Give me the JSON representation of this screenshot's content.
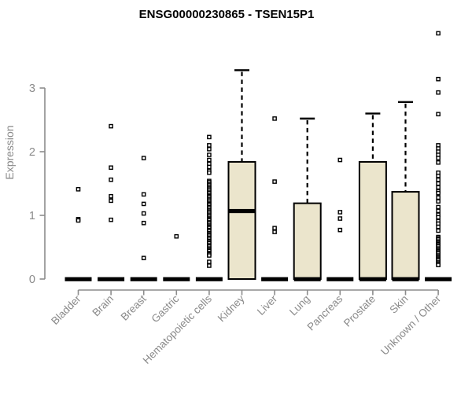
{
  "chart_data": {
    "type": "boxplot",
    "title": "ENSG00000230865 - TSEN15P1",
    "xlabel": "",
    "ylabel": "Expression",
    "ylim": [
      0,
      3.9
    ],
    "yticks": [
      0,
      1,
      2,
      3
    ],
    "grid": false,
    "legend": "none",
    "box_fill_color": "#ebe5cc",
    "box_stroke_color": "#000000",
    "axis_color": "#8c8c8c",
    "tick_label_color": "#8a8a8a",
    "outlier_marker": "open-square",
    "categories": [
      "Bladder",
      "Brain",
      "Breast",
      "Gastric",
      "Hematopoietic cells",
      "Kidney",
      "Liver",
      "Lung",
      "Pancreas",
      "Prostate",
      "Skin",
      "Unknown / Other"
    ],
    "groups": [
      {
        "label": "Bladder",
        "box": {
          "q1": 0,
          "median": 0,
          "q3": 0
        },
        "whisker_low": 0,
        "whisker_high": 0,
        "outliers": [
          1.41,
          0.94,
          0.92
        ]
      },
      {
        "label": "Brain",
        "box": {
          "q1": 0,
          "median": 0,
          "q3": 0
        },
        "whisker_low": 0,
        "whisker_high": 0,
        "outliers": [
          2.4,
          1.75,
          1.56,
          1.3,
          1.23,
          0.93
        ]
      },
      {
        "label": "Breast",
        "box": {
          "q1": 0,
          "median": 0,
          "q3": 0
        },
        "whisker_low": 0,
        "whisker_high": 0,
        "outliers": [
          1.9,
          1.33,
          1.18,
          1.03,
          0.88,
          0.33
        ]
      },
      {
        "label": "Gastric",
        "box": {
          "q1": 0,
          "median": 0,
          "q3": 0
        },
        "whisker_low": 0,
        "whisker_high": 0,
        "outliers": [
          0.67
        ]
      },
      {
        "label": "Hematopoietic cells",
        "box": {
          "q1": 0,
          "median": 0,
          "q3": 0
        },
        "whisker_low": 0,
        "whisker_high": 0,
        "outliers": [
          2.23,
          2.1,
          2.04,
          1.95,
          1.87,
          1.81,
          1.76,
          1.7,
          1.67,
          1.54,
          1.52,
          1.49,
          1.47,
          1.44,
          1.42,
          1.4,
          1.37,
          1.35,
          1.32,
          1.3,
          1.28,
          1.25,
          1.23,
          1.2,
          1.18,
          1.16,
          1.13,
          1.11,
          1.08,
          1.06,
          1.04,
          1.01,
          0.99,
          0.96,
          0.94,
          0.92,
          0.89,
          0.87,
          0.84,
          0.82,
          0.8,
          0.77,
          0.75,
          0.72,
          0.7,
          0.68,
          0.65,
          0.63,
          0.6,
          0.58,
          0.56,
          0.53,
          0.51,
          0.48,
          0.46,
          0.44,
          0.41,
          0.39,
          0.37,
          0.27,
          0.21
        ]
      },
      {
        "label": "Kidney",
        "box": {
          "q1": 0,
          "median": 1.07,
          "q3": 1.84
        },
        "whisker_low": 0,
        "whisker_high": 3.28,
        "outliers": []
      },
      {
        "label": "Liver",
        "box": {
          "q1": 0,
          "median": 0,
          "q3": 0
        },
        "whisker_low": 0,
        "whisker_high": 0,
        "outliers": [
          2.52,
          1.53,
          0.8,
          0.74
        ]
      },
      {
        "label": "Lung",
        "box": {
          "q1": 0,
          "median": 0,
          "q3": 1.19
        },
        "whisker_low": 0,
        "whisker_high": 2.52,
        "outliers": []
      },
      {
        "label": "Pancreas",
        "box": {
          "q1": 0,
          "median": 0,
          "q3": 0
        },
        "whisker_low": 0,
        "whisker_high": 0,
        "outliers": [
          1.87,
          1.05,
          0.95,
          0.77
        ]
      },
      {
        "label": "Prostate",
        "box": {
          "q1": 0,
          "median": 0,
          "q3": 1.84
        },
        "whisker_low": 0,
        "whisker_high": 2.6,
        "outliers": []
      },
      {
        "label": "Skin",
        "box": {
          "q1": 0,
          "median": 0,
          "q3": 1.37
        },
        "whisker_low": 0,
        "whisker_high": 2.78,
        "outliers": []
      },
      {
        "label": "Unknown / Other",
        "box": {
          "q1": 0,
          "median": 0,
          "q3": 0
        },
        "whisker_low": 0,
        "whisker_high": 0,
        "outliers": [
          3.86,
          3.14,
          2.93,
          2.59,
          2.1,
          2.05,
          2.0,
          1.95,
          1.9,
          1.83,
          1.67,
          1.62,
          1.56,
          1.5,
          1.44,
          1.38,
          1.35,
          1.28,
          1.22,
          1.13,
          1.07,
          1.01,
          0.97,
          0.91,
          0.87,
          0.82,
          0.76,
          0.66,
          0.64,
          0.62,
          0.59,
          0.57,
          0.55,
          0.53,
          0.51,
          0.48,
          0.46,
          0.44,
          0.42,
          0.4,
          0.37,
          0.35,
          0.33,
          0.31,
          0.29,
          0.26,
          0.24,
          0.22
        ]
      }
    ]
  }
}
